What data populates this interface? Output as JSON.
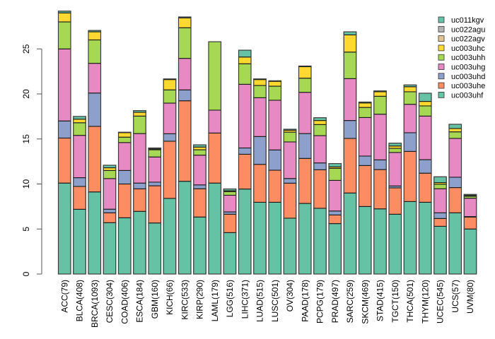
{
  "chart_data": {
    "type": "bar",
    "stacked": true,
    "title": "",
    "xlabel": "",
    "ylabel": "",
    "ylim": [
      0,
      29.5
    ],
    "yticks": [
      0,
      5,
      10,
      15,
      20,
      25
    ],
    "grid": false,
    "legend_position": "top-right",
    "categories": [
      "ACC(79)",
      "BLCA(408)",
      "BRCA(1093)",
      "CESC(304)",
      "COAD(406)",
      "ESCA(184)",
      "GBM(160)",
      "KICH(66)",
      "KIRC(533)",
      "KIRP(290)",
      "LAML(179)",
      "LGG(516)",
      "LIHC(371)",
      "LUAD(515)",
      "LUSC(501)",
      "OV(304)",
      "PAAD(178)",
      "PCPG(179)",
      "PRAD(497)",
      "SARC(259)",
      "SKCM(469)",
      "STAD(415)",
      "TGCT(150)",
      "THCA(501)",
      "THYM(120)",
      "UCEC(545)",
      "UCS(57)",
      "UVM(80)"
    ],
    "series": [
      {
        "name": "uc003uhf",
        "color": "#66C2A5",
        "values": [
          10.1,
          7.19,
          9.12,
          5.7,
          6.25,
          6.96,
          5.67,
          8.4,
          10.3,
          6.33,
          10.1,
          4.6,
          9.44,
          7.97,
          7.97,
          6.2,
          7.84,
          7.3,
          5.6,
          9.0,
          7.5,
          7.24,
          6.64,
          8.05,
          7.97,
          5.3,
          6.8,
          5.0
        ]
      },
      {
        "name": "uc003uhe",
        "color": "#FC8D62",
        "values": [
          5.0,
          2.54,
          7.28,
          1.1,
          3.75,
          2.5,
          4.13,
          6.35,
          8.94,
          3.14,
          5.56,
          2.04,
          3.86,
          4.21,
          3.56,
          3.89,
          5.0,
          4.28,
          0.96,
          6.06,
          4.55,
          4.36,
          2.93,
          5.57,
          3.23,
          0.87,
          2.8,
          1.33
        ]
      },
      {
        "name": "uc003uhd",
        "color": "#8DA0CB",
        "values": [
          1.9,
          0.97,
          3.7,
          0.4,
          1.5,
          0.64,
          0.4,
          0.83,
          1.21,
          0.43,
          0,
          0.26,
          0.7,
          3.09,
          2.25,
          0.52,
          2.76,
          0.76,
          0.44,
          1.99,
          1.05,
          1.08,
          0.21,
          2.07,
          1.5,
          0.63,
          1.15,
          0.05
        ]
      },
      {
        "name": "uc003uhg",
        "color": "#E78AC3",
        "values": [
          8.0,
          4.7,
          3.3,
          3.4,
          3.1,
          5.5,
          2.8,
          3.4,
          3.5,
          3.3,
          2.54,
          1.85,
          7.07,
          4.31,
          5.52,
          4.06,
          4.58,
          3.03,
          3.4,
          4.65,
          4.28,
          5.07,
          3.72,
          3.16,
          4.84,
          2.67,
          4.31,
          2.04
        ]
      },
      {
        "name": "uc003uhh",
        "color": "#A6D854",
        "values": [
          3.0,
          1.4,
          2.6,
          0.9,
          0.6,
          1.94,
          0.8,
          1.47,
          3.4,
          0.6,
          7.6,
          0.4,
          2.28,
          1.36,
          1.56,
          1.09,
          1.57,
          1.23,
          1.34,
          2.95,
          1.12,
          1.99,
          0.46,
          1.39,
          1.13,
          0.5,
          0.73,
          0.21
        ]
      },
      {
        "name": "uc003uhc",
        "color": "#FFD92F",
        "values": [
          1.0,
          0.4,
          0.9,
          0.3,
          0.5,
          0.42,
          0.1,
          1.15,
          1.1,
          0.3,
          0,
          0.1,
          0.75,
          0.66,
          0.54,
          0.21,
          1.28,
          0.45,
          0.16,
          1.91,
          0.5,
          0.5,
          0.26,
          0.56,
          0.5,
          0.18,
          0.37,
          0.1
        ]
      },
      {
        "name": "uc022agv",
        "color": "#E5C494",
        "values": [
          0,
          0,
          0,
          0,
          0,
          0,
          0,
          0,
          0,
          0,
          0,
          0,
          0,
          0,
          0,
          0,
          0,
          0,
          0,
          0,
          0,
          0,
          0,
          0,
          0,
          0,
          0,
          0
        ]
      },
      {
        "name": "uc022agu",
        "color": "#B3B3B3",
        "values": [
          0,
          0,
          0,
          0,
          0,
          0,
          0,
          0,
          0,
          0,
          0,
          0,
          0,
          0,
          0,
          0,
          0,
          0,
          0,
          0,
          0,
          0,
          0,
          0,
          0,
          0,
          0,
          0
        ]
      },
      {
        "name": "uc011kgv",
        "color": "#66C2A5",
        "values": [
          0.2,
          0.3,
          0.15,
          0.28,
          0.05,
          0.19,
          0.1,
          0.07,
          0.1,
          0.25,
          0,
          0.2,
          0.76,
          0.07,
          0.06,
          0.11,
          0.07,
          0.31,
          0.37,
          0.34,
          0.1,
          0.1,
          0.31,
          0.2,
          0.91,
          0.65,
          0.47,
          0.11
        ]
      }
    ],
    "legend": [
      "uc011kgv",
      "uc022agu",
      "uc022agv",
      "uc003uhc",
      "uc003uhh",
      "uc003uhg",
      "uc003uhd",
      "uc003uhe",
      "uc003uhf"
    ]
  }
}
